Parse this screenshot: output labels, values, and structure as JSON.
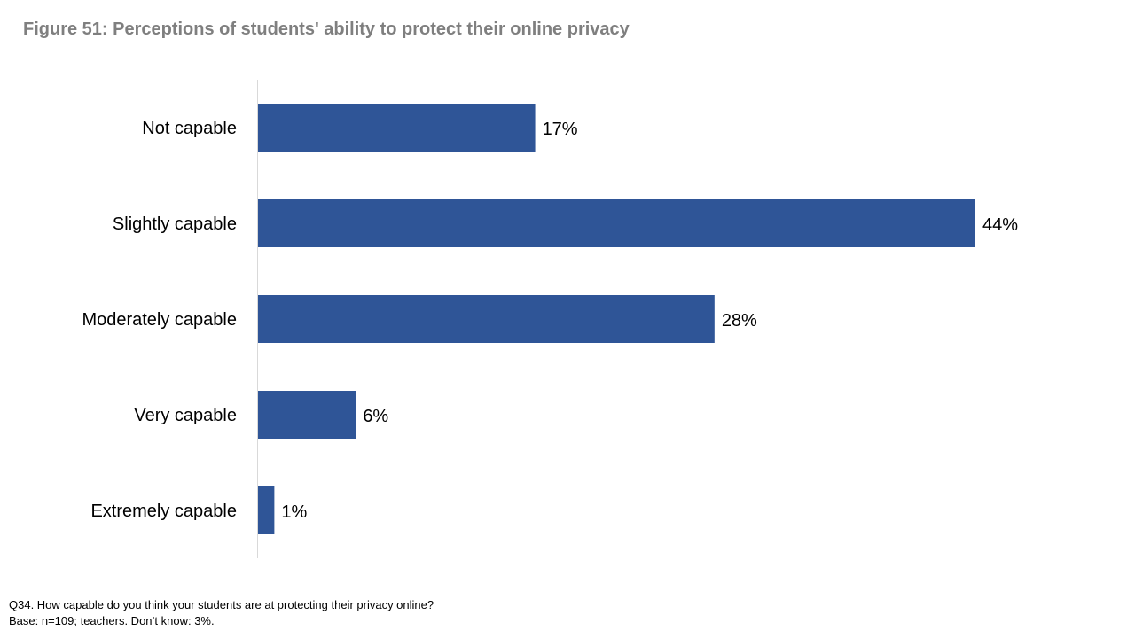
{
  "title": "Figure 51: Perceptions of students' ability to protect their online privacy",
  "chart_data": {
    "type": "bar",
    "orientation": "horizontal",
    "categories": [
      "Not capable",
      "Slightly capable",
      "Moderately capable",
      "Very capable",
      "Extremely capable"
    ],
    "values": [
      17,
      44,
      28,
      6,
      1
    ],
    "value_labels": [
      "17%",
      "44%",
      "28%",
      "6%",
      "1%"
    ],
    "unit": "%",
    "xlim": [
      0,
      44
    ],
    "grid": false,
    "legend": "none",
    "bar_color": "#2f5597",
    "axis_color": "#d9d9d9"
  },
  "footnote": {
    "question": "Q34. How capable do you think your students are at protecting their privacy online?",
    "base": "Base: n=109; teachers. Don’t know: 3%."
  }
}
